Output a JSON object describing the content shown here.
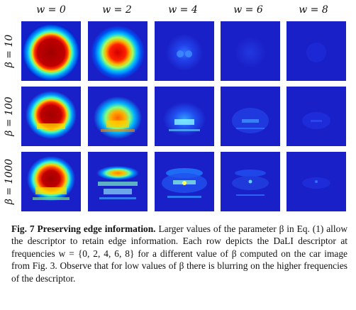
{
  "figure": {
    "column_labels": [
      "w = 0",
      "w = 2",
      "w = 4",
      "w = 6",
      "w = 8"
    ],
    "row_labels": [
      "β = 10",
      "β = 100",
      "β = 1000"
    ],
    "colormap": [
      "#00008f",
      "#0010ff",
      "#00a0ff",
      "#30ffd0",
      "#d0ff30",
      "#ffa000",
      "#ff1000",
      "#8f0000"
    ]
  },
  "caption": {
    "label": "Fig. 7",
    "title": "Preserving edge information.",
    "text": "Larger values of the parameter β in Eq. (1) allow the descriptor to retain edge information. Each row depicts the DaLI descriptor at frequencies w = {0, 2, 4, 6, 8} for a different value of β computed on the car image from Fig. 3. Observe that for low values of β there is blurring on the higher frequencies of the descriptor."
  }
}
